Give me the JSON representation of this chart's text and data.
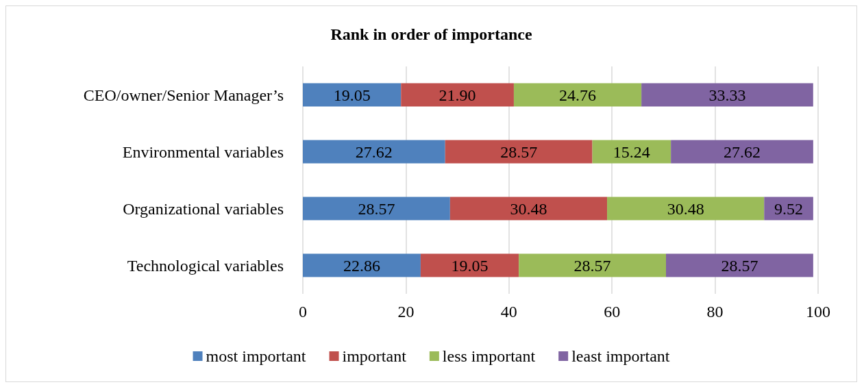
{
  "chart_data": {
    "type": "bar",
    "orientation": "horizontal",
    "stacked": true,
    "title": "Rank in order of importance",
    "categories": [
      "CEO/owner/Senior Manager’s",
      "Environmental variables",
      "Organizational variables",
      "Technological variables"
    ],
    "series": [
      {
        "name": "most important",
        "color": "#4f81bd",
        "values": [
          19.05,
          27.62,
          28.57,
          22.86
        ],
        "value_labels": [
          "19.05",
          "27.62",
          "28.57",
          "22.86"
        ]
      },
      {
        "name": "important",
        "color": "#c0504d",
        "values": [
          21.9,
          28.57,
          30.48,
          19.05
        ],
        "value_labels": [
          "21.90",
          "28.57",
          "30.48",
          "19.05"
        ]
      },
      {
        "name": "less important",
        "color": "#9bbb59",
        "values": [
          24.76,
          15.24,
          30.48,
          28.57
        ],
        "value_labels": [
          "24.76",
          "15.24",
          "30.48",
          "28.57"
        ]
      },
      {
        "name": "least important",
        "color": "#8064a2",
        "values": [
          33.33,
          27.62,
          9.52,
          28.57
        ],
        "value_labels": [
          "33.33",
          "27.62",
          "9.52",
          "28.57"
        ]
      }
    ],
    "xlim": [
      0,
      100
    ],
    "xticks": [
      0,
      20,
      40,
      60,
      80,
      100
    ],
    "grid": "x",
    "legend": "bottom"
  }
}
